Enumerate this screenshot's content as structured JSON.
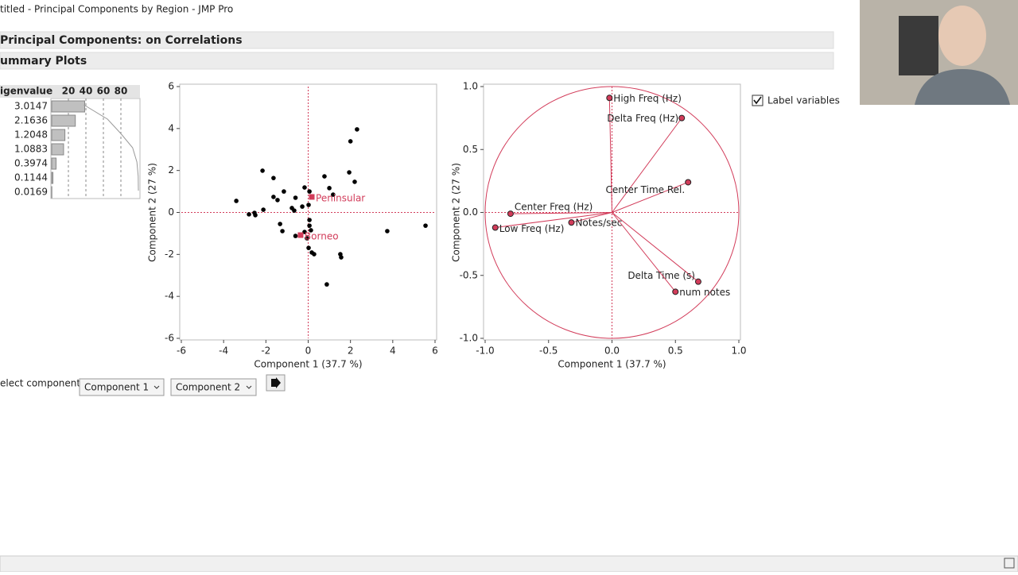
{
  "window_title": "titled - Principal Components by Region - JMP Pro",
  "headers": [
    "Principal Components: on Correlations",
    "ummary Plots"
  ],
  "controls": {
    "select_label": "elect component",
    "dropdowns": [
      "Component 1",
      "Component 2"
    ],
    "checkbox_label": "Label variables",
    "checked": true
  },
  "chart_data": [
    {
      "type": "bar",
      "title": "igenvalue",
      "categories": [
        3.0147,
        2.1636,
        1.2048,
        1.0883,
        0.3974,
        0.1144,
        0.0169
      ],
      "values": [
        37.7,
        27.0,
        15.1,
        13.6,
        5.0,
        1.4,
        0.2
      ],
      "line_values": [
        37.7,
        64.7,
        79.8,
        93.4,
        98.3,
        99.8,
        100
      ],
      "color": "#c0c0c0",
      "xlim": [
        0,
        100
      ],
      "xticks": [
        20,
        40,
        60,
        80
      ],
      "grid": true
    },
    {
      "type": "scatter",
      "x_label": "Component 1  (37.7 %)",
      "y_label": "Component 2  (27 %)",
      "x": [
        2.31,
        2.0,
        -2.16,
        -1.64,
        0.77,
        1.94,
        2.2,
        -3.4,
        -1.15,
        -0.17,
        0.06,
        -1.64,
        -1.45,
        -0.6,
        1.0,
        1.18,
        0.02,
        -0.28,
        -0.77,
        -0.66,
        -2.12,
        -2.8,
        -2.54,
        -2.5,
        0.06,
        -1.33,
        0.06,
        -1.22,
        -0.17,
        0.13,
        -0.6,
        -0.06,
        0.02,
        0.17,
        0.28,
        1.52,
        1.56,
        0.88,
        3.74,
        5.55
      ],
      "y": [
        3.96,
        3.39,
        1.99,
        1.64,
        1.72,
        1.91,
        1.46,
        0.55,
        1.0,
        1.19,
        1.0,
        0.74,
        0.59,
        0.7,
        1.16,
        0.85,
        0.36,
        0.28,
        0.21,
        0.09,
        0.13,
        -0.09,
        -0.02,
        -0.13,
        -0.36,
        -0.55,
        -0.63,
        -0.89,
        -0.93,
        -0.85,
        -1.12,
        -1.23,
        -1.69,
        -1.91,
        -1.99,
        -1.99,
        -2.14,
        -3.43,
        -0.89,
        -0.63
      ],
      "color": "#000000",
      "groups": [
        {
          "name": "Peninsular",
          "x": 0.17,
          "y": 0.74
        },
        {
          "name": "Borneo",
          "x": -0.36,
          "y": -1.08
        }
      ],
      "group_color": "#d23c5a",
      "xlim": [
        -6,
        6
      ],
      "ylim": [
        -6,
        6
      ],
      "xticks": [
        -6,
        -4,
        -2,
        0,
        2,
        4,
        6
      ],
      "yticks": [
        -6,
        -4,
        -2,
        0,
        2,
        4,
        6
      ]
    },
    {
      "type": "loading",
      "x_label": "Component 1  (37.7 %)",
      "y_label": "Component 2  (27 %)",
      "names": [
        "High Freq (Hz)",
        "Delta Freq (Hz)",
        "Center Time Rel.",
        "Center Freq (Hz)",
        "Low Freq (Hz)",
        "Notes/sec",
        "Delta Time (s)",
        "num notes"
      ],
      "x": [
        -0.02,
        0.55,
        0.6,
        -0.8,
        -0.92,
        -0.32,
        0.68,
        0.5
      ],
      "y": [
        0.91,
        0.75,
        0.24,
        -0.01,
        -0.12,
        -0.08,
        -0.55,
        -0.63
      ],
      "color": "#d23c5a",
      "xlim": [
        -1,
        1
      ],
      "ylim": [
        -1,
        1
      ],
      "xticks": [
        {
          "value": -1,
          "label": "-1.0"
        },
        -0.5,
        {
          "value": 0,
          "label": "0.0"
        },
        0.5,
        {
          "value": 1,
          "label": "1.0"
        }
      ],
      "yticks": [
        {
          "value": -1,
          "label": "-1.0"
        },
        -0.5,
        {
          "value": 0,
          "label": "0.0"
        },
        0.5,
        {
          "value": 1,
          "label": "1.0"
        }
      ]
    }
  ]
}
